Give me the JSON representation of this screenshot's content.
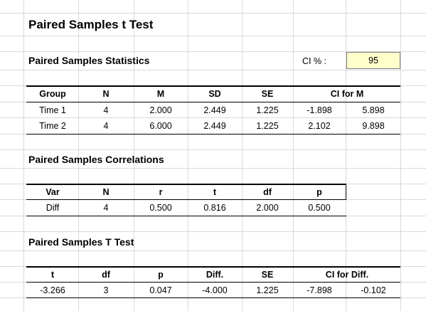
{
  "title": "Paired Samples t Test",
  "ci": {
    "label": "CI % :",
    "value": "95"
  },
  "statistics": {
    "heading": "Paired Samples Statistics",
    "columns": [
      "Group",
      "N",
      "M",
      "SD",
      "SE",
      "CI for M"
    ],
    "rows": [
      [
        "Time 1",
        "4",
        "2.000",
        "2.449",
        "1.225",
        "-1.898",
        "5.898"
      ],
      [
        "Time 2",
        "4",
        "6.000",
        "2.449",
        "1.225",
        "2.102",
        "9.898"
      ]
    ]
  },
  "correlations": {
    "heading": "Paired Samples Correlations",
    "columns": [
      "Var",
      "N",
      "r",
      "t",
      "df",
      "p"
    ],
    "rows": [
      [
        "Diff",
        "4",
        "0.500",
        "0.816",
        "2.000",
        "0.500"
      ]
    ]
  },
  "ttest": {
    "heading": "Paired Samples T Test",
    "columns": [
      "t",
      "df",
      "p",
      "Diff.",
      "SE",
      "CI for Diff."
    ],
    "rows": [
      [
        "-3.266",
        "3",
        "0.047",
        "-4.000",
        "1.225",
        "-7.898",
        "-0.102"
      ]
    ]
  }
}
